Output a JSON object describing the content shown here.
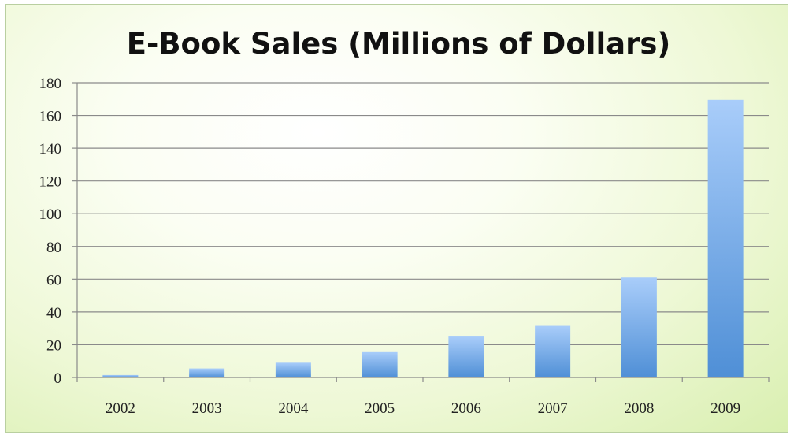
{
  "chart_data": {
    "type": "bar",
    "title": "E-Book Sales (Millions of Dollars)",
    "xlabel": "",
    "ylabel": "",
    "categories": [
      "2002",
      "2003",
      "2004",
      "2005",
      "2006",
      "2007",
      "2008",
      "2009"
    ],
    "values": [
      1.5,
      5.5,
      9,
      15.5,
      25,
      31.5,
      61,
      169.5
    ],
    "ylim": [
      0,
      180
    ],
    "y_ticks": [
      "0",
      "20",
      "40",
      "60",
      "80",
      "100",
      "120",
      "140",
      "160",
      "180"
    ],
    "grid": true,
    "legend": "none",
    "colors": {
      "bar_top": "#a9cdfa",
      "bar_bottom": "#4f8fd6",
      "grid": "#8a8a8a",
      "axis": "#8a8a8a"
    }
  }
}
